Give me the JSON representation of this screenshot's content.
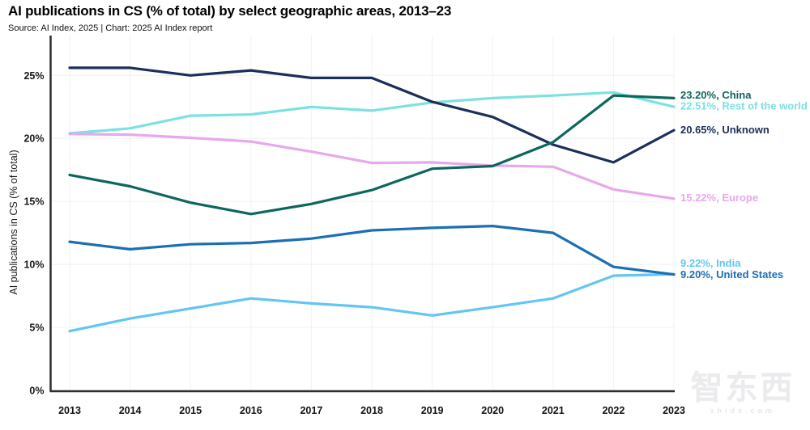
{
  "header": {
    "title": "AI publications in CS (% of total) by select geographic areas, 2013–23",
    "source": "Source: AI Index, 2025 | Chart: 2025 AI Index report"
  },
  "watermark": {
    "logo": "智东西",
    "domain": "zhidx.com"
  },
  "chart_data": {
    "type": "line",
    "title": "AI publications in CS (% of total) by select geographic areas, 2013–23",
    "xlabel": "",
    "ylabel": "AI publications in CS (% of total)",
    "x": [
      2013,
      2014,
      2015,
      2016,
      2017,
      2018,
      2019,
      2020,
      2021,
      2022,
      2023
    ],
    "ylim": [
      0,
      28
    ],
    "yticks": [
      0,
      5,
      10,
      15,
      20,
      25
    ],
    "ytick_suffix": "%",
    "grid": true,
    "legend_position": "end-of-line-labels-right",
    "series": [
      {
        "name": "Rest of the world",
        "end_label": "22.51%, Rest of the world",
        "color": "#7ce1e1",
        "values": [
          20.4,
          20.8,
          21.8,
          21.9,
          22.5,
          22.2,
          22.85,
          23.2,
          23.4,
          23.65,
          22.51
        ],
        "label_dy": -1
      },
      {
        "name": "Europe",
        "end_label": "15.22%, Europe",
        "color": "#e7a8ec",
        "values": [
          20.35,
          20.3,
          20.05,
          19.75,
          18.95,
          18.05,
          18.1,
          17.85,
          17.75,
          15.95,
          15.22
        ],
        "label_dy": -1.5
      },
      {
        "name": "Unknown",
        "end_label": "20.65%, Unknown",
        "color": "#1b2f5a",
        "values": [
          25.6,
          25.6,
          25.0,
          25.4,
          24.8,
          24.8,
          22.9,
          21.7,
          19.5,
          18.1,
          20.65
        ],
        "label_dy": -0.5
      },
      {
        "name": "China",
        "end_label": "23.20%, China",
        "color": "#0d675c",
        "values": [
          17.1,
          16.2,
          14.9,
          14.0,
          14.8,
          15.9,
          17.6,
          17.8,
          19.7,
          23.4,
          23.2
        ],
        "label_dy": -4
      },
      {
        "name": "India",
        "end_label": "9.22%, India",
        "color": "#62c5f2",
        "values": [
          4.7,
          5.7,
          6.5,
          7.3,
          6.9,
          6.6,
          5.95,
          6.6,
          7.3,
          9.1,
          9.22
        ],
        "label_dy": -14
      },
      {
        "name": "United States",
        "end_label": "9.20%, United States",
        "color": "#1c6fb4",
        "values": [
          11.8,
          11.2,
          11.6,
          11.7,
          12.05,
          12.7,
          12.9,
          13.05,
          12.5,
          9.8,
          9.2
        ],
        "label_dy": 0
      }
    ]
  }
}
